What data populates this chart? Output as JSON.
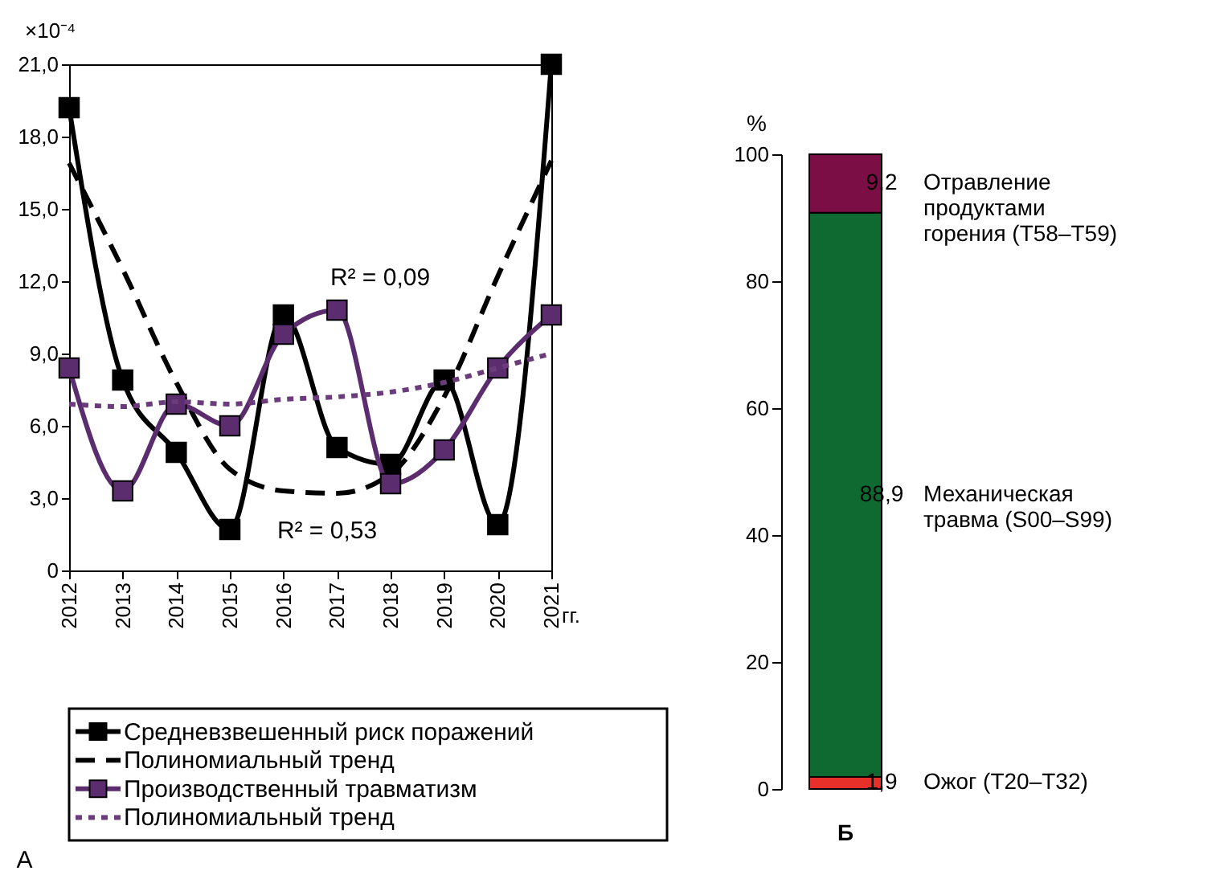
{
  "chart_data": [
    {
      "type": "line",
      "title": "А",
      "xlabel": "гг.",
      "ylabel": "×10⁻⁴",
      "categories": [
        "2012",
        "2013",
        "2014",
        "2015",
        "2016",
        "2017",
        "2018",
        "2019",
        "2020",
        "2021"
      ],
      "ylim": [
        0,
        21
      ],
      "yticks": [
        0,
        {
          "value": 3,
          "label": "3,0"
        },
        {
          "value": 6,
          "label": "6,0"
        },
        {
          "value": 9,
          "label": "9,0"
        },
        {
          "value": 12,
          "label": "12,0"
        },
        {
          "value": 15,
          "label": "15,0"
        },
        {
          "value": 18,
          "label": "18,0"
        },
        {
          "value": 21,
          "label": "21,0"
        }
      ],
      "legend": "bottom",
      "annotations": [
        "R² = 0,09",
        "R² = 0,53"
      ],
      "series": [
        {
          "name": "Средневзвешенный риск поражений",
          "color": "#000000",
          "type": "line",
          "marker": "square",
          "line_style": "solid",
          "values": [
            19.2,
            7.9,
            4.9,
            1.7,
            10.6,
            5.1,
            4.4,
            7.9,
            1.9,
            21.0
          ]
        },
        {
          "name": "Полиномиальный тренд",
          "color": "#000000",
          "type": "line",
          "marker": "none",
          "line_style": "dashed",
          "values": [
            16.9,
            12.5,
            7.8,
            4.2,
            3.3,
            3.2,
            4.0,
            7.2,
            12.2,
            17.0
          ]
        },
        {
          "name": "Производственный травматизм",
          "color": "#5c2d6e",
          "type": "line",
          "marker": "square",
          "line_style": "solid",
          "values": [
            8.4,
            3.3,
            6.9,
            6.0,
            9.8,
            10.8,
            3.6,
            5.0,
            8.4,
            10.6
          ]
        },
        {
          "name": "Полиномиальный тренд",
          "color": "#6a3d7a",
          "type": "line",
          "marker": "none",
          "line_style": "dotted",
          "values": [
            6.9,
            6.8,
            7.0,
            6.9,
            7.1,
            7.2,
            7.4,
            7.8,
            8.4,
            9.0
          ]
        }
      ]
    },
    {
      "type": "bar",
      "stacked": true,
      "title": "Б",
      "ylabel": "%",
      "categories": [
        null
      ],
      "ylim": [
        0,
        100
      ],
      "yticks": [
        0,
        20,
        40,
        60,
        80,
        100
      ],
      "tick_labels": "y",
      "series": [
        {
          "name": "Ожог (T20–T32)",
          "color": "#e8302a",
          "values": [
            1.9
          ],
          "value_labels": [
            "1,9"
          ]
        },
        {
          "name": "Механическая травма (S00–S99)",
          "color": "#0e6a30",
          "values": [
            88.9
          ],
          "value_labels": [
            "88,9"
          ]
        },
        {
          "name": "Отравление продуктами горения (T58–T59)",
          "color": "#7b0f45",
          "values": [
            9.2
          ],
          "value_labels": [
            "9,2"
          ]
        }
      ]
    }
  ]
}
